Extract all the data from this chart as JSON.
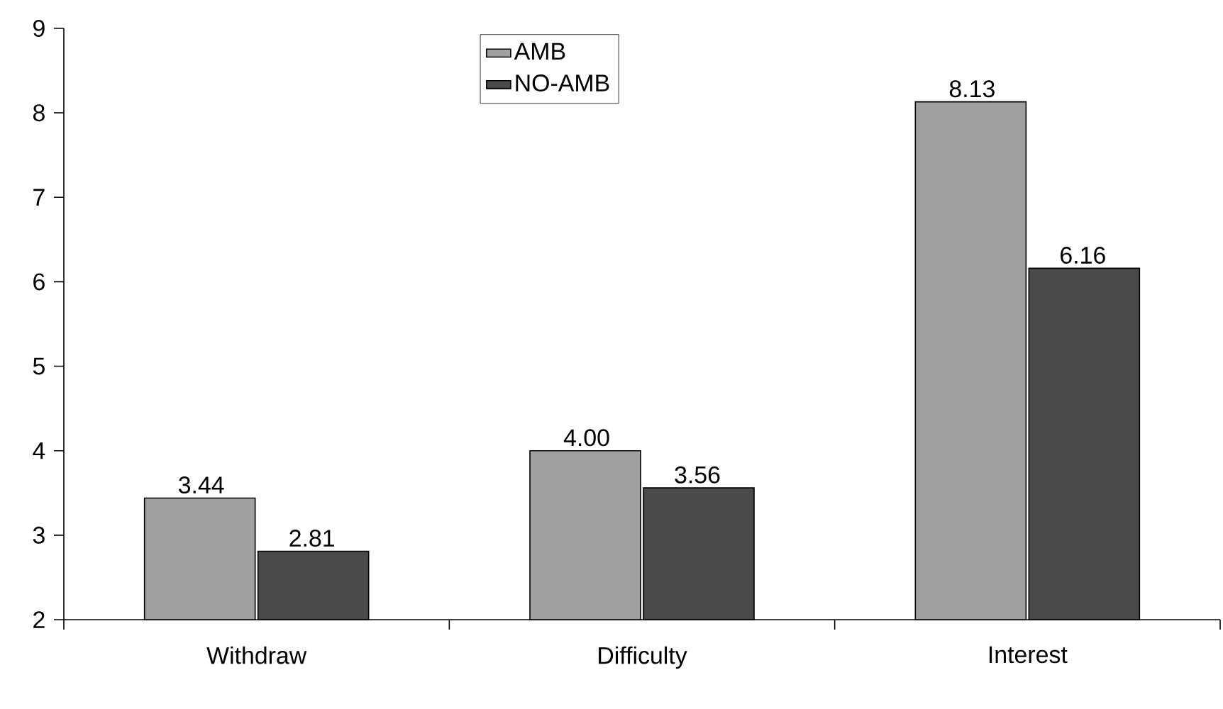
{
  "chart_data": {
    "type": "bar",
    "categories": [
      "Withdraw",
      "Difficulty",
      "Interest"
    ],
    "series": [
      {
        "name": "AMB",
        "color": "#a0a0a0",
        "values": [
          3.44,
          4.0,
          8.13
        ],
        "value_labels": [
          "3.44",
          "4.00",
          "8.13"
        ]
      },
      {
        "name": "NO-AMB",
        "color": "#4a4a4a",
        "values": [
          2.81,
          3.56,
          6.16
        ],
        "value_labels": [
          "2.81",
          "3.56",
          "6.16"
        ]
      }
    ],
    "ylim": [
      2,
      9
    ],
    "yticks": [
      2,
      3,
      4,
      5,
      6,
      7,
      8,
      9
    ],
    "legend": "top"
  }
}
